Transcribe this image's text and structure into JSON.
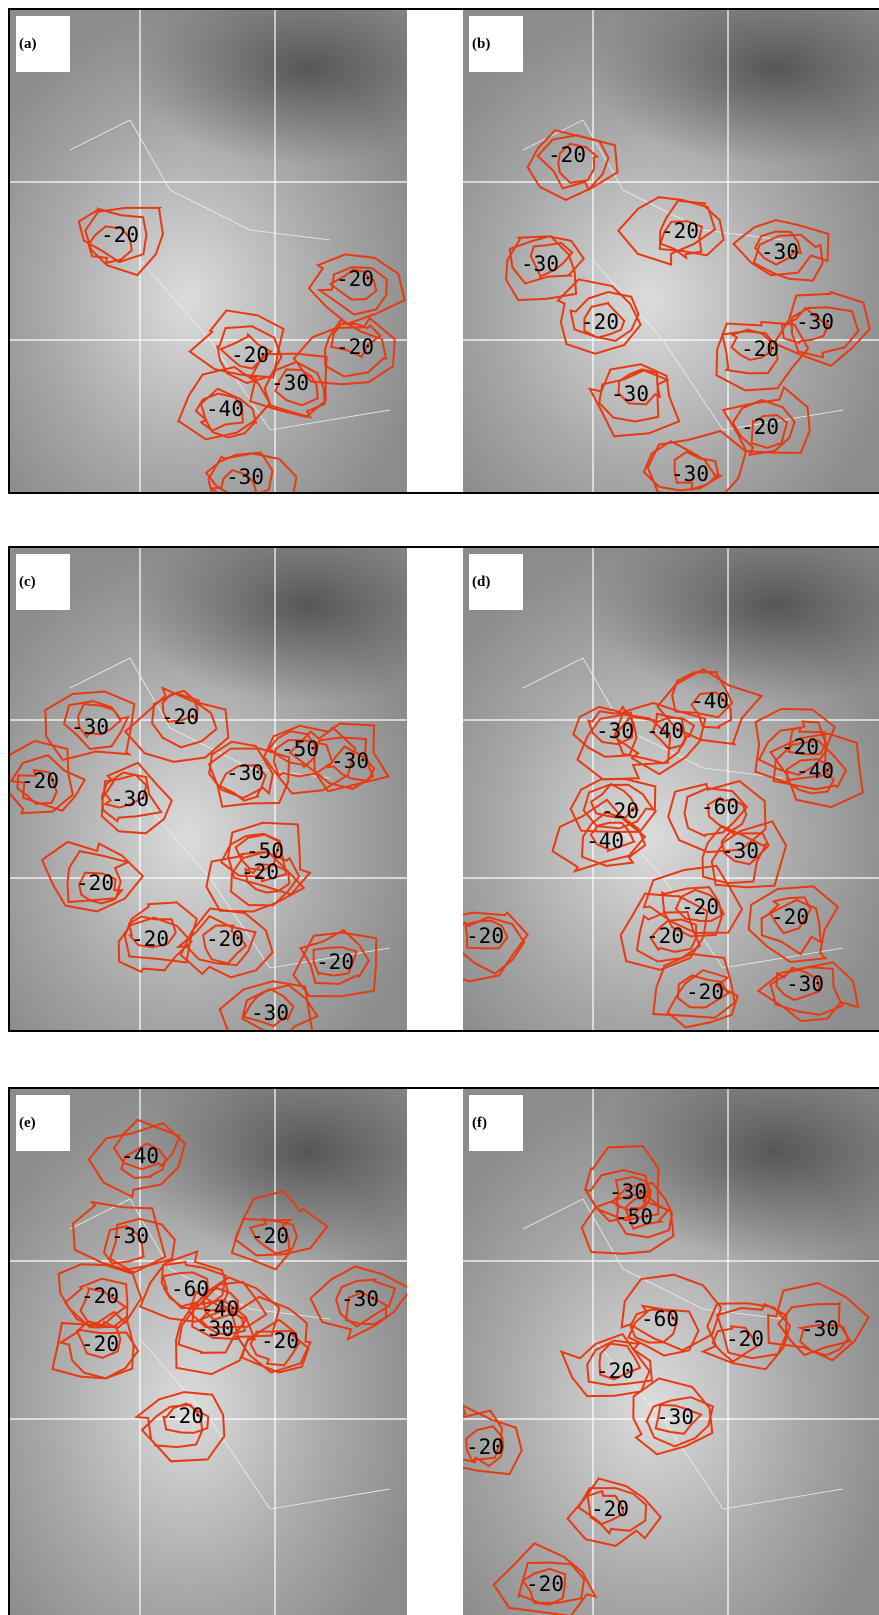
{
  "panels": [
    {
      "label": "(a)",
      "contour_labels": [
        "-20",
        "-20",
        "-20",
        "-20",
        "-30",
        "-40",
        "-30"
      ]
    },
    {
      "label": "(b)",
      "contour_labels": [
        "-20",
        "-30",
        "-20",
        "-30",
        "-30",
        "-20",
        "-20",
        "-30",
        "-20",
        "-30"
      ]
    },
    {
      "label": "(c)",
      "contour_labels": [
        "-30",
        "-20",
        "-20",
        "-30",
        "-30",
        "-50",
        "-30",
        "-50",
        "-20",
        "-20",
        "-20",
        "-20",
        "-20",
        "-30"
      ]
    },
    {
      "label": "(d)",
      "contour_labels": [
        "-40",
        "-30",
        "-40",
        "-20",
        "-40",
        "-20",
        "-60",
        "-40",
        "-30",
        "-20",
        "-20",
        "-20",
        "-20",
        "-20",
        "-30"
      ]
    },
    {
      "label": "(e)",
      "contour_labels": [
        "-40",
        "-30",
        "-20",
        "-60",
        "-20",
        "-40",
        "-30",
        "-20",
        "-20",
        "-30",
        "-20"
      ]
    },
    {
      "label": "(f)",
      "contour_labels": [
        "-30",
        "-50",
        "-60",
        "-20",
        "-30",
        "-20",
        "-30",
        "-20",
        "-20",
        "-20"
      ]
    }
  ]
}
